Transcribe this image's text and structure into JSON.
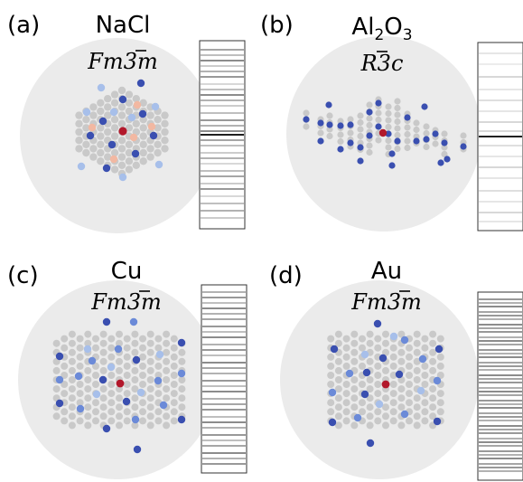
{
  "colors": {
    "background_disk": "#ebebeb",
    "neutral_atom": "#c9c9c9",
    "center_atom": "#b2182b",
    "dark_blue": "#3a4fb0",
    "mid_blue": "#6b8ad8",
    "light_blue": "#a7bfea",
    "light_red": "#f2b8a2",
    "barcode_line": "#000000"
  },
  "panels": [
    {
      "id": "a",
      "label": "(a)",
      "material": "NaCl",
      "material_base": "NaCl",
      "material_parts": [],
      "space_group": {
        "base": "Fm",
        "bar_digit": "3",
        "suffix": "m"
      },
      "barcode": {
        "lines": [
          0.03,
          0.06,
          0.09,
          0.12,
          0.15,
          0.18,
          0.22,
          0.25,
          0.28,
          0.31,
          0.34,
          0.38,
          0.42,
          0.45,
          0.48,
          0.5,
          0.53,
          0.56,
          0.6,
          0.63,
          0.66,
          0.7,
          0.73,
          0.77,
          0.8,
          0.84,
          0.88,
          0.92,
          0.96
        ],
        "strength": [
          0.7,
          0.5,
          0.9,
          0.4,
          0.6,
          0.8,
          0.3,
          0.5,
          0.9,
          0.6,
          0.4,
          0.5,
          0.8,
          0.6,
          0.9,
          1.0,
          0.7,
          0.5,
          0.4,
          0.6,
          0.3,
          0.5,
          0.7,
          0.4,
          0.8,
          0.3,
          0.5,
          0.6,
          0.4
        ]
      }
    },
    {
      "id": "b",
      "label": "(b)",
      "material": "Al2O3",
      "material_base": "Al",
      "material_parts": [
        {
          "text": "2",
          "sub": true
        },
        {
          "text": "O",
          "sub": false
        },
        {
          "text": "3",
          "sub": true
        }
      ],
      "space_group": {
        "base": "R",
        "bar_digit": "3",
        "suffix": "c"
      },
      "barcode": {
        "lines": [
          0.04,
          0.1,
          0.17,
          0.24,
          0.3,
          0.36,
          0.42,
          0.47,
          0.5,
          0.55,
          0.61,
          0.67,
          0.73,
          0.8,
          0.86,
          0.92,
          0.97
        ],
        "strength": [
          0.2,
          0.15,
          0.3,
          0.2,
          0.25,
          0.2,
          0.3,
          0.3,
          1.0,
          0.25,
          0.2,
          0.3,
          0.2,
          0.25,
          0.2,
          0.3,
          0.2
        ]
      }
    },
    {
      "id": "c",
      "label": "(c)",
      "material": "Cu",
      "material_base": "Cu",
      "material_parts": [],
      "space_group": {
        "base": "Fm",
        "bar_digit": "3",
        "suffix": "m"
      },
      "barcode": {
        "lines": [
          0.02,
          0.05,
          0.08,
          0.11,
          0.14,
          0.17,
          0.21,
          0.24,
          0.27,
          0.31,
          0.34,
          0.37,
          0.41,
          0.44,
          0.47,
          0.51,
          0.54,
          0.57,
          0.61,
          0.64,
          0.67,
          0.71,
          0.74,
          0.77,
          0.81,
          0.84,
          0.87,
          0.91,
          0.94,
          0.97
        ],
        "strength": [
          0.6,
          0.8,
          0.5,
          0.9,
          0.6,
          0.7,
          0.8,
          0.5,
          0.9,
          0.6,
          0.8,
          0.5,
          0.9,
          0.7,
          0.6,
          0.8,
          0.5,
          0.9,
          0.6,
          0.7,
          0.8,
          0.5,
          0.9,
          0.6,
          0.8,
          0.5,
          0.7,
          0.9,
          0.6,
          0.8
        ]
      }
    },
    {
      "id": "d",
      "label": "(d)",
      "material": "Au",
      "material_base": "Au",
      "material_parts": [],
      "space_group": {
        "base": "Fm",
        "bar_digit": "3",
        "suffix": "m"
      },
      "barcode": {
        "lines": [
          0.02,
          0.04,
          0.06,
          0.09,
          0.11,
          0.13,
          0.16,
          0.18,
          0.2,
          0.23,
          0.25,
          0.27,
          0.3,
          0.32,
          0.34,
          0.37,
          0.39,
          0.41,
          0.44,
          0.46,
          0.48,
          0.51,
          0.53,
          0.55,
          0.58,
          0.6,
          0.62,
          0.65,
          0.67,
          0.69,
          0.72,
          0.74,
          0.76,
          0.79,
          0.81,
          0.83,
          0.86,
          0.88,
          0.9,
          0.93,
          0.95,
          0.97
        ],
        "strength": [
          0.8,
          0.6,
          0.9,
          0.7,
          0.8,
          0.6,
          0.9,
          0.7,
          0.8,
          0.6,
          0.9,
          0.7,
          0.8,
          0.6,
          0.9,
          0.7,
          0.8,
          0.6,
          0.9,
          0.7,
          0.8,
          0.6,
          0.9,
          0.7,
          0.8,
          0.6,
          0.9,
          0.7,
          0.8,
          0.6,
          0.9,
          0.7,
          0.8,
          0.6,
          0.9,
          0.7,
          0.8,
          0.6,
          0.9,
          0.7,
          0.8,
          0.6
        ]
      }
    }
  ]
}
